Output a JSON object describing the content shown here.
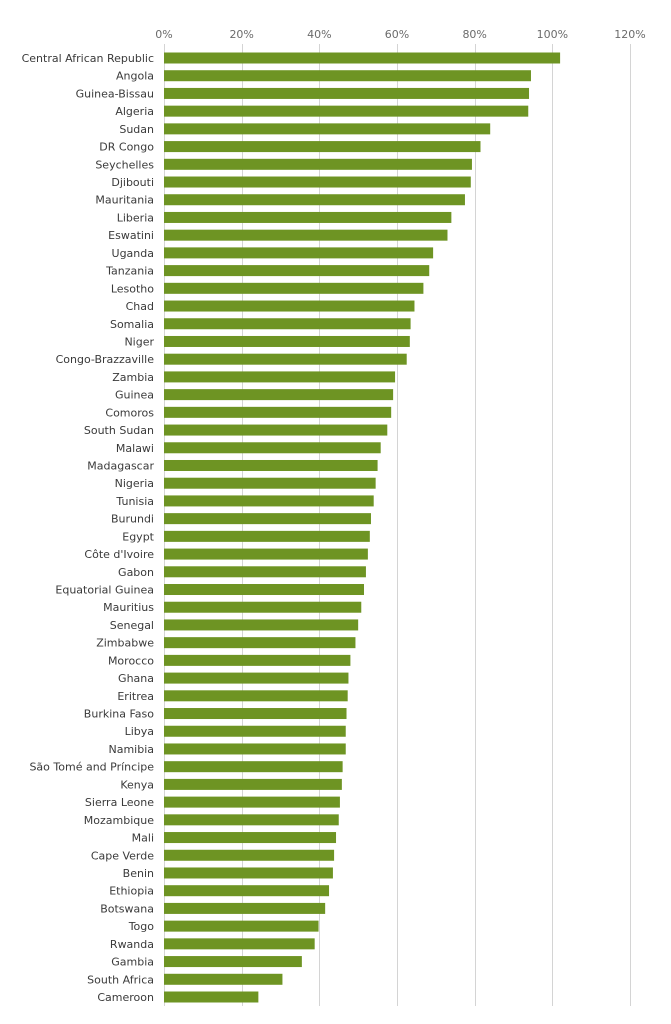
{
  "chart_data": {
    "type": "bar",
    "orientation": "horizontal",
    "title": "",
    "xlabel": "",
    "ylabel": "",
    "xlim": [
      0,
      120
    ],
    "x_ticks": [
      "0%",
      "20%",
      "40%",
      "60%",
      "80%",
      "100%",
      "120%"
    ],
    "x_tick_values": [
      0,
      20,
      40,
      60,
      80,
      100,
      120
    ],
    "grid": "vertical",
    "legend": "none",
    "bar_color": "#6e9423",
    "categories": [
      "Central African Republic",
      "Angola",
      "Guinea-Bissau",
      "Algeria",
      "Sudan",
      "DR Congo",
      "Seychelles",
      "Djibouti",
      "Mauritania",
      "Liberia",
      "Eswatini",
      "Uganda",
      "Tanzania",
      "Lesotho",
      "Chad",
      "Somalia",
      "Niger",
      "Congo-Brazzaville",
      "Zambia",
      "Guinea",
      "Comoros",
      "South Sudan",
      "Malawi",
      "Madagascar",
      "Nigeria",
      "Tunisia",
      "Burundi",
      "Egypt",
      "Côte d'Ivoire",
      "Gabon",
      "Equatorial Guinea",
      "Mauritius",
      "Senegal",
      "Zimbabwe",
      "Morocco",
      "Ghana",
      "Eritrea",
      "Burkina Faso",
      "Libya",
      "Namibia",
      "São Tomé and Príncipe",
      "Kenya",
      "Sierra Leone",
      "Mozambique",
      "Mali",
      "Cape Verde",
      "Benin",
      "Ethiopia",
      "Botswana",
      "Togo",
      "Rwanda",
      "Gambia",
      "South Africa",
      "Cameroon"
    ],
    "values": [
      102.0,
      94.5,
      94.0,
      93.8,
      84.0,
      81.5,
      79.3,
      79.0,
      77.5,
      74.0,
      73.0,
      69.3,
      68.3,
      66.8,
      64.5,
      63.5,
      63.3,
      62.5,
      59.5,
      59.0,
      58.5,
      57.5,
      55.8,
      55.0,
      54.5,
      54.0,
      53.3,
      53.0,
      52.5,
      52.0,
      51.5,
      50.8,
      50.0,
      49.3,
      48.0,
      47.5,
      47.3,
      47.0,
      46.8,
      46.8,
      46.0,
      45.8,
      45.3,
      45.0,
      44.3,
      43.8,
      43.5,
      42.5,
      41.5,
      39.8,
      38.8,
      35.5,
      30.5,
      24.3
    ]
  }
}
